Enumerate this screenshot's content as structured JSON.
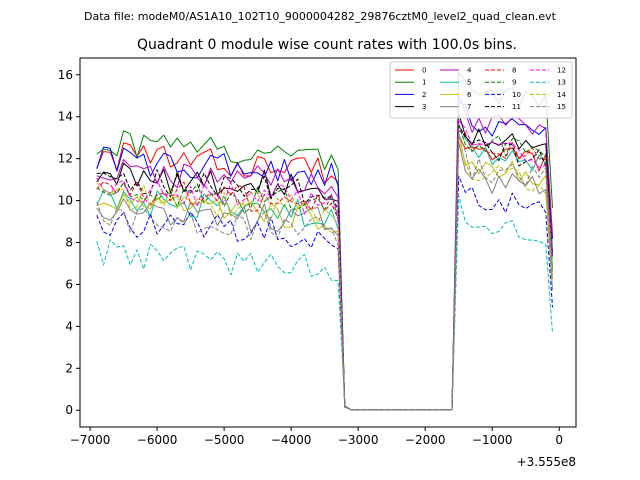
{
  "header": {
    "file_label": "Data file: modeM0/AS1A10_102T10_9000004282_29876cztM0_level2_quad_clean.evt"
  },
  "chart_data": {
    "type": "line",
    "title": "Quadrant 0 module wise count rates with 100.0s bins.",
    "xlabel": "",
    "ylabel": "",
    "x_offset_label": "+3.555e8",
    "xlim": [
      -7150,
      250
    ],
    "ylim": [
      -0.8,
      16.8
    ],
    "x_ticks": [
      -7000,
      -6000,
      -5000,
      -4000,
      -3000,
      -2000,
      -1000,
      0
    ],
    "x_tick_labels": [
      "−7000",
      "−6000",
      "−5000",
      "−4000",
      "−3000",
      "−2000",
      "−1000",
      "0"
    ],
    "y_ticks": [
      0,
      2,
      4,
      6,
      8,
      10,
      12,
      14,
      16
    ],
    "y_tick_labels": [
      "0",
      "2",
      "4",
      "6",
      "8",
      "10",
      "12",
      "14",
      "16"
    ],
    "x_start": -6900,
    "x_step": 100,
    "seg1_count": 37,
    "gap_count": 17,
    "seg2_count": 15,
    "legend_position": "top-right",
    "series": [
      {
        "name": "0",
        "color": "#ff0000",
        "dashed": false,
        "level1": 11.8,
        "level2": 11.7
      },
      {
        "name": "1",
        "color": "#008000",
        "dashed": false,
        "level1": 12.4,
        "level2": 14.6
      },
      {
        "name": "2",
        "color": "#0000ff",
        "dashed": false,
        "level1": 11.6,
        "level2": 13.1
      },
      {
        "name": "3",
        "color": "#000000",
        "dashed": false,
        "level1": 10.9,
        "level2": 12.4
      },
      {
        "name": "4",
        "color": "#bf00bf",
        "dashed": false,
        "level1": 11.1,
        "level2": 13.2
      },
      {
        "name": "5",
        "color": "#00bf9f",
        "dashed": false,
        "level1": 9.6,
        "level2": 11.6
      },
      {
        "name": "6",
        "color": "#bfbf00",
        "dashed": false,
        "level1": 9.5,
        "level2": 11.1
      },
      {
        "name": "7",
        "color": "#808080",
        "dashed": false,
        "level1": 9.3,
        "level2": 10.5
      },
      {
        "name": "8",
        "color": "#ff0000",
        "dashed": true,
        "level1": 10.1,
        "level2": 12.0
      },
      {
        "name": "9",
        "color": "#008000",
        "dashed": true,
        "level1": 10.1,
        "level2": 12.2
      },
      {
        "name": "10",
        "color": "#0000ff",
        "dashed": true,
        "level1": 8.7,
        "level2": 9.6
      },
      {
        "name": "11",
        "color": "#000000",
        "dashed": true,
        "level1": 10.6,
        "level2": 11.9
      },
      {
        "name": "12",
        "color": "#ff00ff",
        "dashed": true,
        "level1": 10.3,
        "level2": 12.0
      },
      {
        "name": "13",
        "color": "#00bfbf",
        "dashed": true,
        "level1": 7.2,
        "level2": 8.3
      },
      {
        "name": "14",
        "color": "#bfbf00",
        "dashed": true,
        "level1": 9.9,
        "level2": 10.8
      },
      {
        "name": "15",
        "color": "#808080",
        "dashed": true,
        "level1": 8.9,
        "level2": 11.0
      }
    ]
  }
}
